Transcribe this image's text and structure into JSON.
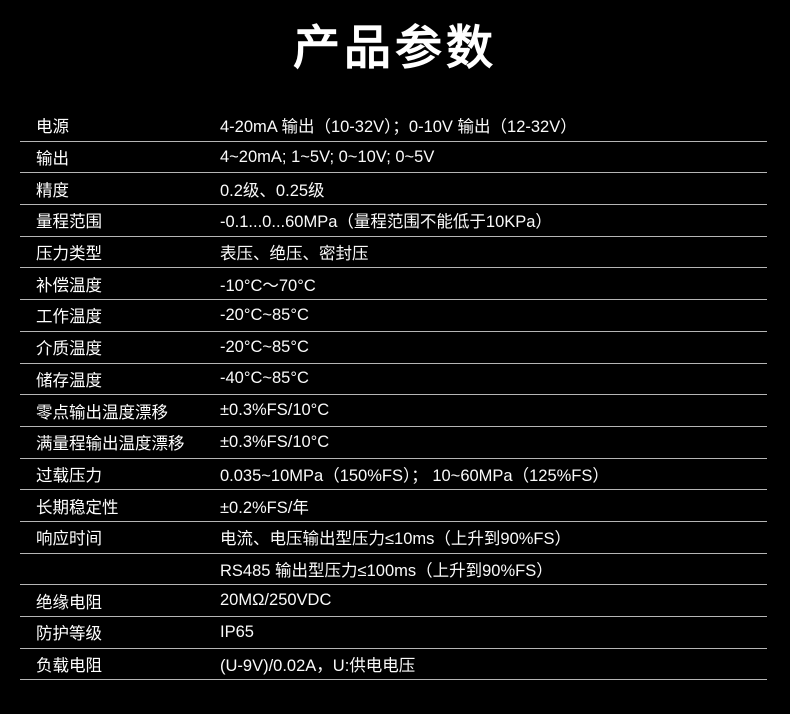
{
  "page": {
    "background_color": "#000000",
    "text_color": "#ffffff",
    "divider_color": "#b5b5b5"
  },
  "header": {
    "title": "产品参数"
  },
  "table": {
    "rows": [
      {
        "label": "电源",
        "value": "4-20mA 输出（10-32V）；0-10V 输出（12-32V）"
      },
      {
        "label": "输出",
        "value": "4~20mA; 1~5V; 0~10V; 0~5V"
      },
      {
        "label": "精度",
        "value": "0.2级、0.25级"
      },
      {
        "label": "量程范围",
        "value": "-0.1...0...60MPa（量程范围不能低于10KPa）"
      },
      {
        "label": "压力类型",
        "value": "表压、绝压、密封压"
      },
      {
        "label": "补偿温度",
        "value": "-10°C～70°C"
      },
      {
        "label": "工作温度",
        "value": "-20°C~85°C"
      },
      {
        "label": "介质温度",
        "value": "-20°C~85°C"
      },
      {
        "label": "储存温度",
        "value": "-40°C~85°C"
      },
      {
        "label": "零点输出温度漂移",
        "value": "±0.3%FS/10°C"
      },
      {
        "label": "满量程输出温度漂移",
        "value": "±0.3%FS/10°C"
      },
      {
        "label": "过载压力",
        "value": "0.035~10MPa（150%FS）； 10~60MPa（125%FS）"
      },
      {
        "label": "长期稳定性",
        "value": "±0.2%FS/年"
      },
      {
        "label": "响应时间",
        "value": "电流、电压输出型压力≤10ms（上升到90%FS）"
      },
      {
        "label": "",
        "value": "RS485 输出型压力≤100ms（上升到90%FS）"
      },
      {
        "label": "绝缘电阻",
        "value": "20MΩ/250VDC"
      },
      {
        "label": "防护等级",
        "value": "IP65"
      },
      {
        "label": "负载电阻",
        "value": "(U-9V)/0.02A，U:供电电压"
      }
    ]
  }
}
